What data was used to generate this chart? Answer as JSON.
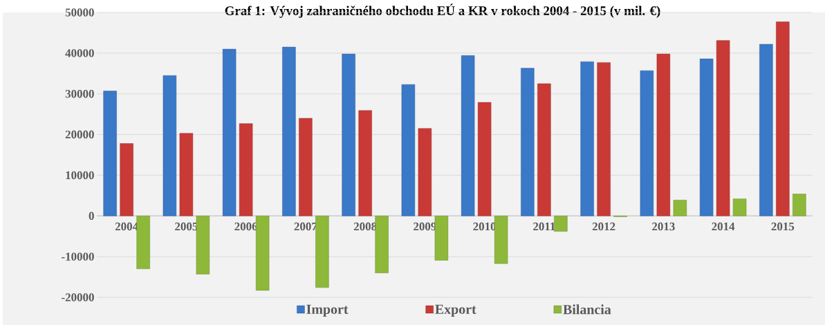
{
  "chart_data": {
    "type": "bar",
    "title": "Graf 1: Vývoj zahraničného obchodu EÚ a KR v rokoch 2004 - 2015 (v mil. €)",
    "categories": [
      "2004",
      "2005",
      "2006",
      "2007",
      "2008",
      "2009",
      "2010",
      "2011",
      "2012",
      "2013",
      "2014",
      "2015"
    ],
    "series": [
      {
        "name": "Import",
        "color": "#3a78c8",
        "values": [
          30700,
          34500,
          41000,
          41500,
          39800,
          32300,
          39400,
          36300,
          37900,
          35700,
          38600,
          42200
        ]
      },
      {
        "name": "Export",
        "color": "#c93a36",
        "values": [
          17800,
          20300,
          22700,
          24000,
          25900,
          21500,
          27900,
          32500,
          37700,
          39800,
          43100,
          47700
        ]
      },
      {
        "name": "Bilancia",
        "color": "#8db83a",
        "values": [
          -13000,
          -14300,
          -18300,
          -17600,
          -14000,
          -10900,
          -11700,
          -3800,
          -200,
          3900,
          4200,
          5400
        ]
      }
    ],
    "ylim": [
      -20000,
      50000
    ],
    "yticks": [
      -20000,
      -10000,
      0,
      10000,
      20000,
      30000,
      40000,
      50000
    ],
    "grid": "y",
    "legend": "bottom"
  }
}
